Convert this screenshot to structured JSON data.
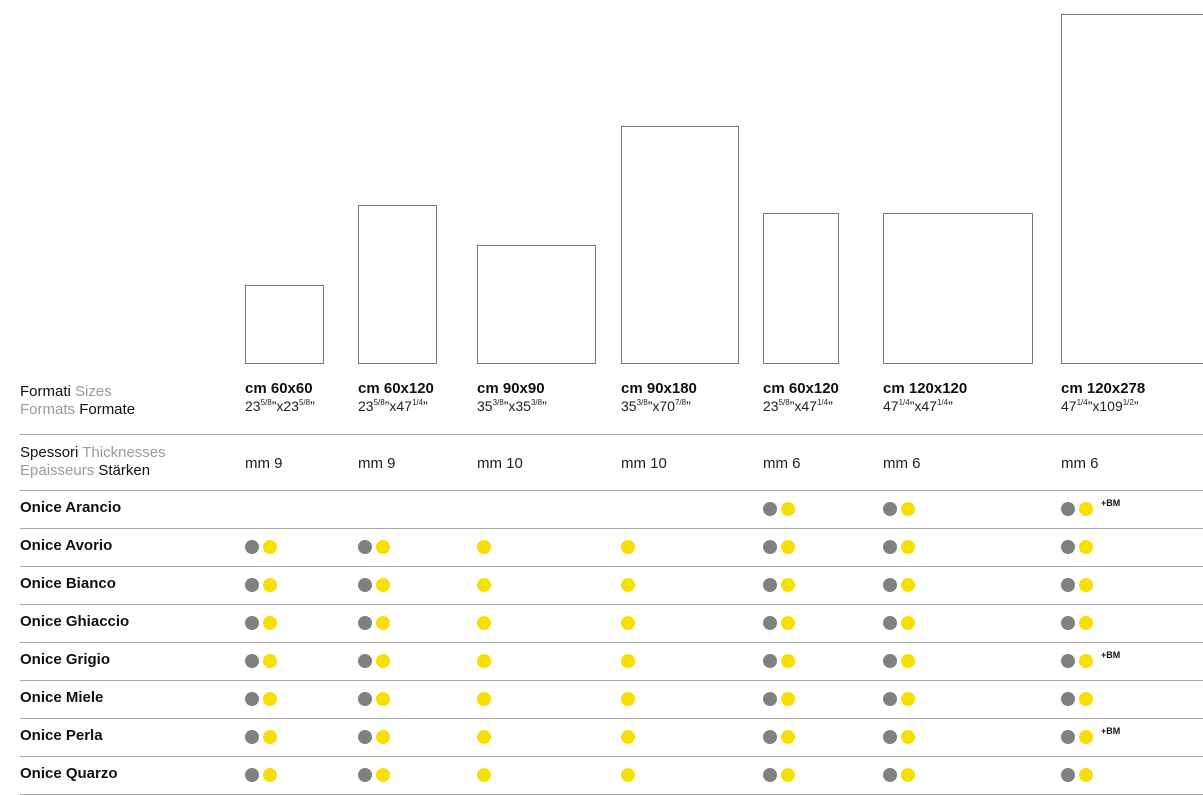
{
  "header": {
    "sizes_label_it": "Formati",
    "sizes_label_en": "Sizes",
    "sizes_label_fr": "Formats",
    "sizes_label_de": "Formate",
    "thick_label_it": "Spessori",
    "thick_label_en": "Thicknesses",
    "thick_label_fr": "Epaisseurs",
    "thick_label_de": "Stärken"
  },
  "columns": [
    {
      "cm": "cm 60x60",
      "in_a": "23",
      "in_a_frac": "5/8",
      "in_a_q": "”",
      "in_sep": "x",
      "in_b": "23",
      "in_b_frac": "5/8",
      "in_b_q": "”",
      "thickness": "mm 9"
    },
    {
      "cm": "cm 60x120",
      "in_a": "23",
      "in_a_frac": "5/8",
      "in_a_q": "”",
      "in_sep": "x",
      "in_b": "47",
      "in_b_frac": "1/4",
      "in_b_q": "”",
      "thickness": "mm 9"
    },
    {
      "cm": "cm 90x90",
      "in_a": "35",
      "in_a_frac": "3/8",
      "in_a_q": "”",
      "in_sep": "x",
      "in_b": "35",
      "in_b_frac": "3/8",
      "in_b_q": "”",
      "thickness": "mm 10"
    },
    {
      "cm": "cm 90x180",
      "in_a": "35",
      "in_a_frac": "3/8",
      "in_a_q": "”",
      "in_sep": "x",
      "in_b": "70",
      "in_b_frac": "7/8",
      "in_b_q": "”",
      "thickness": "mm 10"
    },
    {
      "cm": "cm 60x120",
      "in_a": "23",
      "in_a_frac": "5/8",
      "in_a_q": "”",
      "in_sep": "x",
      "in_b": "47",
      "in_b_frac": "1/4",
      "in_b_q": "”",
      "thickness": "mm 6"
    },
    {
      "cm": "cm 120x120",
      "in_a": "47",
      "in_a_frac": "1/4",
      "in_a_q": "”",
      "in_sep": "x",
      "in_b": "47",
      "in_b_frac": "1/4",
      "in_b_q": "”",
      "thickness": "mm 6"
    },
    {
      "cm": "cm 120x278",
      "in_a": "47",
      "in_a_frac": "1/4",
      "in_a_q": "”",
      "in_sep": "x",
      "in_b": "109",
      "in_b_frac": "1/2",
      "in_b_q": "”",
      "thickness": "mm 6"
    }
  ],
  "rows": [
    {
      "name": "Onice Arancio",
      "cells": [
        "",
        "",
        "",
        "",
        "gy",
        "gy",
        "gy"
      ],
      "bm": "+BM"
    },
    {
      "name": "Onice Avorio",
      "cells": [
        "gy",
        "gy",
        "y",
        "y",
        "gy",
        "gy",
        "gy"
      ],
      "bm": ""
    },
    {
      "name": "Onice Bianco",
      "cells": [
        "gy",
        "gy",
        "y",
        "y",
        "gy",
        "gy",
        "gy"
      ],
      "bm": ""
    },
    {
      "name": "Onice Ghiaccio",
      "cells": [
        "gy",
        "gy",
        "y",
        "y",
        "gy",
        "gy",
        "gy"
      ],
      "bm": ""
    },
    {
      "name": "Onice Grigio",
      "cells": [
        "gy",
        "gy",
        "y",
        "y",
        "gy",
        "gy",
        "gy"
      ],
      "bm": "+BM"
    },
    {
      "name": "Onice Miele",
      "cells": [
        "gy",
        "gy",
        "y",
        "y",
        "gy",
        "gy",
        "gy"
      ],
      "bm": ""
    },
    {
      "name": "Onice Perla",
      "cells": [
        "gy",
        "gy",
        "y",
        "y",
        "gy",
        "gy",
        "gy"
      ],
      "bm": "+BM"
    },
    {
      "name": "Onice Quarzo",
      "cells": [
        "gy",
        "gy",
        "y",
        "y",
        "gy",
        "gy",
        "gy"
      ],
      "bm": ""
    }
  ],
  "colors": {
    "gray_dot": "#808080",
    "yellow_dot": "#f7df00",
    "tile_border": "#777777"
  }
}
